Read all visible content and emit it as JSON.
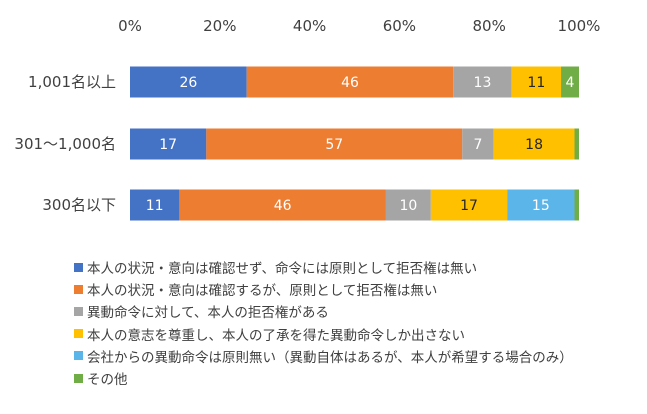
{
  "chart_data": {
    "type": "bar",
    "orientation": "horizontal",
    "stacked": true,
    "percent_stacked": true,
    "xlim": [
      0,
      100
    ],
    "x_ticks": [
      "0%",
      "20%",
      "40%",
      "60%",
      "80%",
      "100%"
    ],
    "x_tick_values": [
      0,
      20,
      40,
      60,
      80,
      100
    ],
    "x_axis_position": "top",
    "grid": false,
    "legend_position": "bottom",
    "categories": [
      "1,001名以上",
      "301～1,000名",
      "300名以下"
    ],
    "series": [
      {
        "name": "本人の状況・意向は確認せず、命令には原則として拒否権は無い",
        "color": "#4472C4",
        "label_color": "#ffffff",
        "values": [
          26,
          17,
          11
        ]
      },
      {
        "name": "本人の状況・意向は確認するが、原則として拒否権は無い",
        "color": "#ED7D31",
        "label_color": "#ffffff",
        "values": [
          46,
          57,
          46
        ]
      },
      {
        "name": "異動命令に対して、本人の拒否権がある",
        "color": "#A5A5A5",
        "label_color": "#ffffff",
        "values": [
          13,
          7,
          10
        ]
      },
      {
        "name": "本人の意志を尊重し、本人の了承を得た異動命令しか出さない",
        "color": "#FFC000",
        "label_color": "#262626",
        "values": [
          11,
          18,
          17
        ]
      },
      {
        "name": "会社からの異動命令は原則無い（異動自体はあるが、本人が希望する場合のみ）",
        "color": "#5BB5E8",
        "label_color": "#ffffff",
        "values": [
          0,
          0,
          15
        ]
      },
      {
        "name": "その他",
        "color": "#70AD47",
        "label_color": "#ffffff",
        "values": [
          4,
          1,
          1
        ]
      }
    ],
    "data_labels": [
      [
        "26",
        "17",
        "11"
      ],
      [
        "46",
        "57",
        "46"
      ],
      [
        "13",
        "7",
        "10"
      ],
      [
        "11",
        "18",
        "17"
      ],
      [
        "",
        "",
        "15"
      ],
      [
        "4",
        "",
        ""
      ]
    ]
  }
}
